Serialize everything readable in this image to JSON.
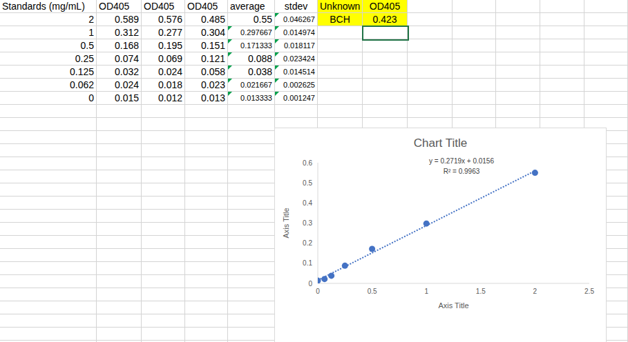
{
  "spreadsheet": {
    "columns": [
      "Standards (mg/mL)",
      "OD405",
      "OD405",
      "OD405",
      "average",
      "stdev"
    ],
    "rows": [
      [
        "2",
        "0.589",
        "0.576",
        "0.485",
        "0.55",
        "0.046267"
      ],
      [
        "1",
        "0.312",
        "0.277",
        "0.304",
        "0.297667",
        "0.014974"
      ],
      [
        "0.5",
        "0.168",
        "0.195",
        "0.151",
        "0.171333",
        "0.018117"
      ],
      [
        "0.25",
        "0.074",
        "0.069",
        "0.121",
        "0.088",
        "0.023424"
      ],
      [
        "0.125",
        "0.032",
        "0.024",
        "0.058",
        "0.038",
        "0.014514"
      ],
      [
        "0.062",
        "0.024",
        "0.018",
        "0.023",
        "0.021667",
        "0.002625"
      ],
      [
        "0",
        "0.015",
        "0.012",
        "0.013",
        "0.013333",
        "0.001247"
      ]
    ],
    "unknown": {
      "columns": [
        "Unknown",
        "OD405"
      ],
      "rows": [
        [
          "BCH",
          "0.423"
        ]
      ]
    }
  },
  "chart_data": {
    "type": "scatter",
    "title": "Chart Title",
    "x_label": "Axis Title",
    "y_label": "Axis Title",
    "x": [
      2,
      1,
      0.5,
      0.25,
      0.125,
      0.062,
      0
    ],
    "series": [
      {
        "color": "#4472c4",
        "marker": "circle",
        "values": [
          0.55,
          0.297667,
          0.171333,
          0.088,
          0.038,
          0.021667,
          0.013333
        ]
      }
    ],
    "trendline": {
      "x": [
        0,
        2
      ],
      "values": [
        0.0156,
        0.5594
      ],
      "line_style": "dotted",
      "color": "#4472c4"
    },
    "annotations": [
      "y = 0.2719x + 0.0156",
      "R² = 0.9963"
    ],
    "xlim": [
      0,
      2.5
    ],
    "xticks": [
      0,
      0.5,
      1,
      1.5,
      2,
      2.5
    ],
    "ylim": [
      0,
      0.6
    ],
    "yticks": [
      0,
      0.1,
      0.2,
      0.3,
      0.4,
      0.5,
      0.6
    ],
    "grid": false
  }
}
